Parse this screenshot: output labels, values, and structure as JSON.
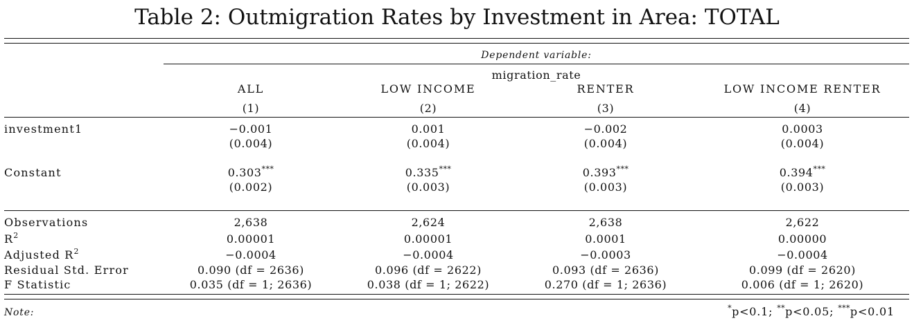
{
  "title": "Table 2: Outmigration Rates by Investment in Area: TOTAL",
  "header": {
    "dependent_variable": "Dependent variable:",
    "dependent_name": "migration_rate",
    "columns": [
      {
        "label": "ALL",
        "number": "(1)"
      },
      {
        "label": "LOW INCOME",
        "number": "(2)"
      },
      {
        "label": "RENTER",
        "number": "(3)"
      },
      {
        "label": "LOW INCOME RENTER",
        "number": "(4)"
      }
    ]
  },
  "coefficients": [
    {
      "label": "investment1",
      "estimates": [
        "−0.001",
        "0.001",
        "−0.002",
        "0.0003"
      ],
      "stars": [
        "",
        "",
        "",
        ""
      ],
      "std_errors": [
        "(0.004)",
        "(0.004)",
        "(0.004)",
        "(0.004)"
      ]
    },
    {
      "label": "Constant",
      "estimates": [
        "0.303",
        "0.335",
        "0.393",
        "0.394"
      ],
      "stars": [
        "***",
        "***",
        "***",
        "***"
      ],
      "std_errors": [
        "(0.002)",
        "(0.003)",
        "(0.003)",
        "(0.003)"
      ]
    }
  ],
  "statistics": [
    {
      "label": "Observations",
      "values": [
        "2,638",
        "2,624",
        "2,638",
        "2,622"
      ]
    },
    {
      "label": "R",
      "sup": "2",
      "values": [
        "0.00001",
        "0.00001",
        "0.0001",
        "0.00000"
      ]
    },
    {
      "label": "Adjusted R",
      "sup": "2",
      "values": [
        "−0.0004",
        "−0.0004",
        "−0.0003",
        "−0.0004"
      ]
    },
    {
      "label": "Residual Std. Error",
      "values": [
        "0.090 (df = 2636)",
        "0.096 (df = 2622)",
        "0.093 (df = 2636)",
        "0.099 (df = 2620)"
      ]
    },
    {
      "label": "F Statistic",
      "values": [
        "0.035 (df = 1; 2636)",
        "0.038 (df = 1; 2622)",
        "0.270 (df = 1; 2636)",
        "0.006 (df = 1; 2620)"
      ]
    }
  ],
  "note": {
    "label": "Note:",
    "star1": "*",
    "p1": "p<0.1;",
    "star2": "**",
    "p2": "p<0.05;",
    "star3": "***",
    "p3": "p<0.01"
  }
}
